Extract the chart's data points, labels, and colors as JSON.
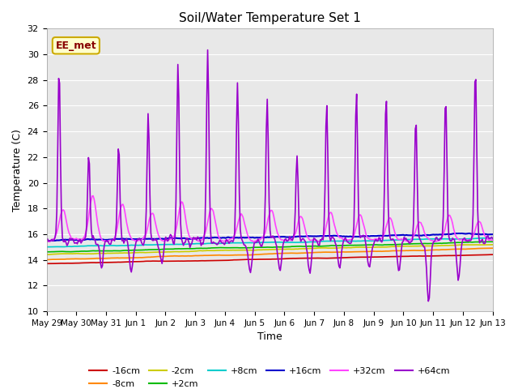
{
  "title": "Soil/Water Temperature Set 1",
  "xlabel": "Time",
  "ylabel": "Temperature (C)",
  "ylim": [
    10,
    32
  ],
  "yticks": [
    10,
    12,
    14,
    16,
    18,
    20,
    22,
    24,
    26,
    28,
    30,
    32
  ],
  "x_labels": [
    "May 29",
    "May 30",
    "May 31",
    "Jun 1",
    "Jun 2",
    "Jun 3",
    "Jun 4",
    "Jun 5",
    "Jun 6",
    "Jun 7",
    "Jun 8",
    "Jun 9",
    "Jun 10",
    "Jun 11",
    "Jun 12",
    "Jun 13"
  ],
  "annotation_text": "EE_met",
  "annotation_bg": "#ffffcc",
  "annotation_border": "#ccaa00",
  "annotation_fg": "#880000",
  "bg_color": "#e8e8e8",
  "series": {
    "-16cm": {
      "color": "#cc0000",
      "lw": 1.2
    },
    "-8cm": {
      "color": "#ff8800",
      "lw": 1.2
    },
    "-2cm": {
      "color": "#cccc00",
      "lw": 1.2
    },
    "+2cm": {
      "color": "#00bb00",
      "lw": 1.2
    },
    "+8cm": {
      "color": "#00cccc",
      "lw": 1.2
    },
    "+16cm": {
      "color": "#0000cc",
      "lw": 1.5
    },
    "+32cm": {
      "color": "#ff44ff",
      "lw": 1.2
    },
    "+64cm": {
      "color": "#9900cc",
      "lw": 1.2
    }
  },
  "legend_order": [
    "-16cm",
    "-8cm",
    "-2cm",
    "+2cm",
    "+8cm",
    "+16cm",
    "+32cm",
    "+64cm"
  ],
  "n_points": 480
}
